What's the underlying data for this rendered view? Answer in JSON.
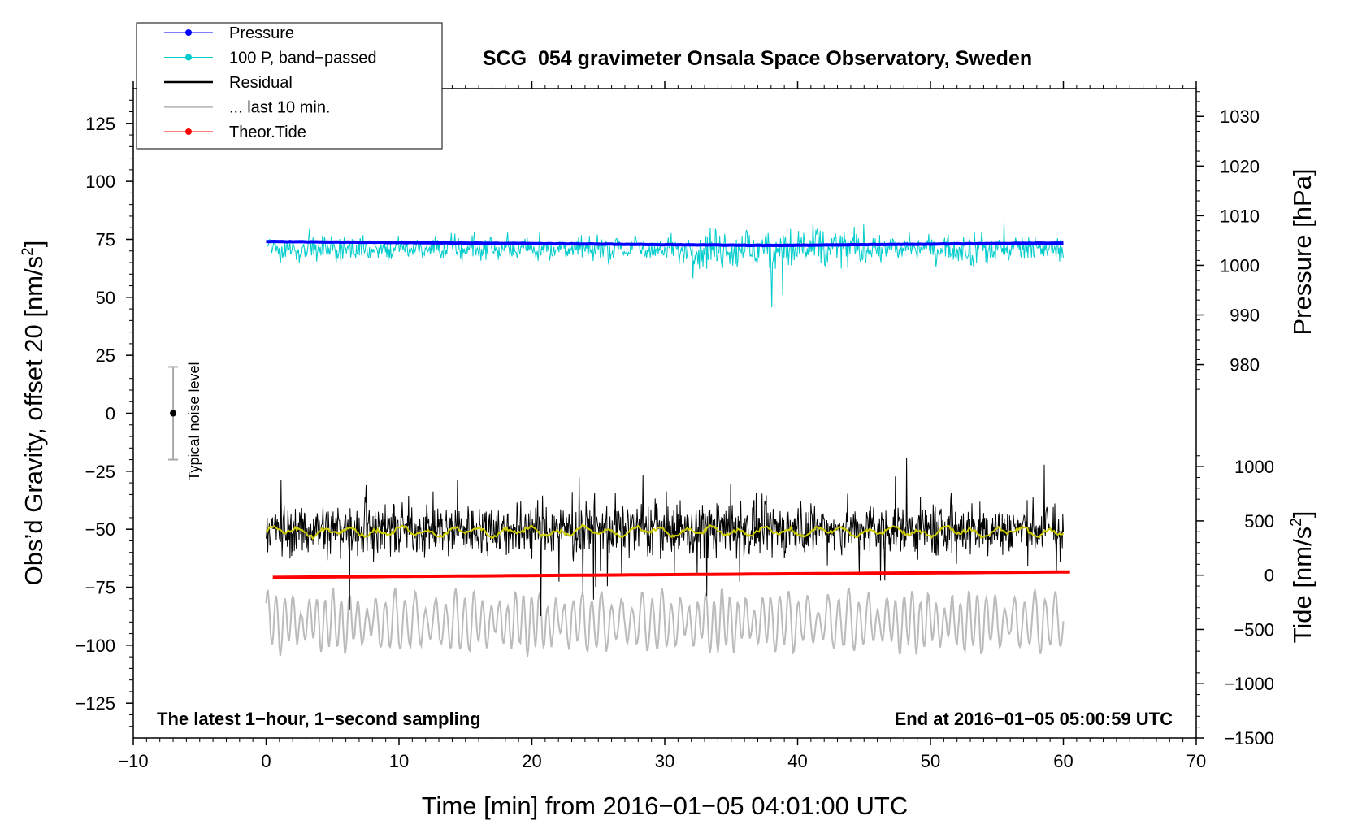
{
  "chart_data": {
    "type": "line",
    "title": "SCG_054 gravimeter Onsala Space Observatory, Sweden",
    "xlabel": "Time [min] from 2016−01−05 04:01:00 UTC",
    "ylabel_left": "Obs’d Gravity, offset 20 [nm/s²]",
    "ylabel_left_main": "Obs’d Gravity, offset 20 [nm/s",
    "ylabel_right_pressure": "Pressure [hPa]",
    "ylabel_right_tide_main": "Tide [nm/s",
    "ylabel_right_tide": "Tide [nm/s²]",
    "superscript": "2",
    "closing_bracket": "]",
    "xlim": [
      -10,
      70
    ],
    "ylim_left": [
      -140,
      140
    ],
    "x_ticks": [
      -10,
      0,
      10,
      20,
      30,
      40,
      50,
      60,
      70
    ],
    "x_tick_labels": [
      "−10",
      "0",
      "10",
      "20",
      "30",
      "40",
      "50",
      "60",
      "70"
    ],
    "y_left_ticks": [
      125,
      100,
      75,
      50,
      25,
      0,
      -25,
      -50,
      -75,
      -100,
      -125
    ],
    "y_left_tick_labels": [
      "125",
      "100",
      "75",
      "50",
      "25",
      "0",
      "−25",
      "−50",
      "−75",
      "−100",
      "−125"
    ],
    "pressure_ticks": [
      1030,
      1020,
      1010,
      1000,
      990,
      980
    ],
    "pressure_tick_labels": [
      "1030",
      "1020",
      "1010",
      "1000",
      "990",
      "980"
    ],
    "pressure_axis_mapping": {
      "p1": 1030,
      "g1": 128,
      "p2": 980,
      "g2": 21
    },
    "tide_ticks": [
      1000,
      500,
      0,
      -500,
      -1000,
      -1500
    ],
    "tide_tick_labels": [
      "1000",
      "500",
      "0",
      "−500",
      "−1000",
      "−1500"
    ],
    "tide_axis_mapping": {
      "t1": 1000,
      "g1": -23,
      "t2": -1500,
      "g2": -140
    },
    "series": [
      {
        "name": "Pressure",
        "color": "#0000ff",
        "x_range": [
          0,
          60
        ],
        "start_hpa": 1004.8,
        "end_hpa": 1004.5,
        "min_hpa": 1004.0
      },
      {
        "name": "100 P, band−passed",
        "color": "#00cccc",
        "x_range": [
          0,
          60
        ],
        "center": 71,
        "amplitude": 8
      },
      {
        "name": "Residual",
        "color": "#000000",
        "x_range": [
          0,
          60
        ],
        "center": -50,
        "amplitude": 15
      },
      {
        "name": "... last 10 min.",
        "color": "#bbbbbb",
        "x_range": [
          0,
          60
        ],
        "center": -90,
        "amplitude": 12
      },
      {
        "name": "Theor.Tide",
        "color": "#ff0000",
        "x_range": [
          0.5,
          60.5
        ],
        "start_nms2": -20,
        "end_nms2": 30
      }
    ],
    "smoothed_residual": {
      "color": "#cccc00",
      "center": -51
    },
    "noise_bar": {
      "x": -7,
      "y": 0,
      "half_range": 20,
      "label": "Typical noise level"
    },
    "annotations": {
      "left": "The latest 1−hour, 1−second sampling",
      "right": "End at 2016−01−05 05:00:59 UTC"
    },
    "legend_position": "top-left"
  }
}
